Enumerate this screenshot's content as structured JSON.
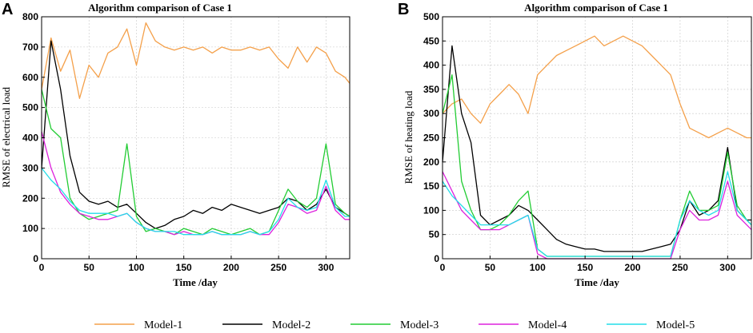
{
  "chart_data": [
    {
      "panel": "A",
      "type": "line",
      "title": "Algorithm comparison of Case 1",
      "xlabel": "Time /day",
      "ylabel": "RMSE of electrical load",
      "xlim": [
        0,
        325
      ],
      "ylim": [
        0,
        800
      ],
      "xticks": [
        0,
        50,
        100,
        150,
        200,
        250,
        300
      ],
      "yticks": [
        0,
        100,
        200,
        300,
        400,
        500,
        600,
        700,
        800
      ],
      "grid": true,
      "series": [
        {
          "name": "Model-1",
          "color": "#f4a04a",
          "x": [
            0,
            10,
            20,
            30,
            40,
            50,
            60,
            70,
            80,
            90,
            100,
            110,
            120,
            130,
            140,
            150,
            160,
            170,
            180,
            190,
            200,
            210,
            220,
            230,
            240,
            250,
            260,
            270,
            280,
            290,
            300,
            310,
            320,
            325
          ],
          "values": [
            560,
            730,
            620,
            690,
            530,
            640,
            600,
            680,
            700,
            760,
            640,
            780,
            720,
            700,
            690,
            700,
            690,
            700,
            680,
            700,
            690,
            690,
            700,
            690,
            700,
            660,
            630,
            700,
            650,
            700,
            680,
            620,
            600,
            580
          ]
        },
        {
          "name": "Model-2",
          "color": "#000000",
          "x": [
            0,
            10,
            20,
            30,
            40,
            50,
            60,
            70,
            80,
            90,
            100,
            110,
            120,
            130,
            140,
            150,
            160,
            170,
            180,
            190,
            200,
            210,
            220,
            230,
            240,
            250,
            260,
            270,
            280,
            290,
            300,
            310,
            320,
            325
          ],
          "values": [
            300,
            720,
            560,
            340,
            220,
            190,
            180,
            190,
            170,
            180,
            150,
            120,
            100,
            110,
            130,
            140,
            160,
            150,
            170,
            160,
            180,
            170,
            160,
            150,
            160,
            170,
            200,
            190,
            160,
            180,
            230,
            170,
            150,
            140
          ]
        },
        {
          "name": "Model-3",
          "color": "#22cc33",
          "x": [
            0,
            10,
            20,
            30,
            40,
            50,
            60,
            70,
            80,
            90,
            100,
            110,
            120,
            130,
            140,
            150,
            160,
            170,
            180,
            190,
            200,
            210,
            220,
            230,
            240,
            250,
            260,
            270,
            280,
            290,
            300,
            310,
            320,
            325
          ],
          "values": [
            560,
            430,
            400,
            200,
            150,
            130,
            140,
            150,
            160,
            380,
            140,
            90,
            100,
            90,
            80,
            100,
            90,
            80,
            100,
            90,
            80,
            90,
            100,
            80,
            90,
            160,
            230,
            190,
            170,
            200,
            380,
            180,
            150,
            140
          ]
        },
        {
          "name": "Model-4",
          "color": "#dd22dd",
          "x": [
            0,
            10,
            20,
            30,
            40,
            50,
            60,
            70,
            80,
            90,
            100,
            110,
            120,
            130,
            140,
            150,
            160,
            170,
            180,
            190,
            200,
            210,
            220,
            230,
            240,
            250,
            260,
            270,
            280,
            290,
            300,
            310,
            320,
            325
          ],
          "values": [
            420,
            300,
            220,
            180,
            150,
            140,
            130,
            130,
            140,
            150,
            120,
            100,
            90,
            90,
            80,
            90,
            80,
            80,
            90,
            80,
            80,
            80,
            90,
            80,
            80,
            120,
            180,
            170,
            150,
            160,
            240,
            160,
            130,
            130
          ]
        },
        {
          "name": "Model-5",
          "color": "#22dde8",
          "x": [
            0,
            10,
            20,
            30,
            40,
            50,
            60,
            70,
            80,
            90,
            100,
            110,
            120,
            130,
            140,
            150,
            160,
            170,
            180,
            190,
            200,
            210,
            220,
            230,
            240,
            250,
            260,
            270,
            280,
            290,
            300,
            310,
            320,
            325
          ],
          "values": [
            300,
            260,
            230,
            190,
            160,
            150,
            150,
            150,
            140,
            150,
            120,
            100,
            90,
            90,
            90,
            80,
            80,
            80,
            90,
            80,
            80,
            80,
            90,
            80,
            90,
            130,
            200,
            170,
            160,
            170,
            260,
            170,
            140,
            140
          ]
        }
      ]
    },
    {
      "panel": "B",
      "type": "line",
      "title": "Algorithm comparison of Case 1",
      "xlabel": "Time /day",
      "ylabel": "RMSE of heating load",
      "xlim": [
        0,
        325
      ],
      "ylim": [
        0,
        500
      ],
      "xticks": [
        0,
        50,
        100,
        150,
        200,
        250,
        300
      ],
      "yticks": [
        0,
        50,
        100,
        150,
        200,
        250,
        300,
        350,
        400,
        450,
        500
      ],
      "grid": true,
      "series": [
        {
          "name": "Model-1",
          "color": "#f4a04a",
          "x": [
            0,
            10,
            20,
            30,
            40,
            50,
            60,
            70,
            80,
            90,
            100,
            110,
            120,
            130,
            140,
            150,
            160,
            170,
            180,
            190,
            200,
            210,
            220,
            230,
            240,
            250,
            260,
            270,
            280,
            290,
            300,
            310,
            320,
            325
          ],
          "values": [
            300,
            320,
            330,
            300,
            280,
            320,
            340,
            360,
            340,
            300,
            380,
            400,
            420,
            430,
            440,
            450,
            460,
            440,
            450,
            460,
            450,
            440,
            420,
            400,
            380,
            320,
            270,
            260,
            250,
            260,
            270,
            260,
            250,
            250
          ]
        },
        {
          "name": "Model-2",
          "color": "#000000",
          "x": [
            0,
            10,
            20,
            30,
            40,
            50,
            60,
            70,
            80,
            90,
            100,
            110,
            120,
            130,
            140,
            150,
            160,
            170,
            180,
            190,
            200,
            210,
            220,
            230,
            240,
            250,
            260,
            270,
            280,
            290,
            300,
            310,
            320,
            325
          ],
          "values": [
            200,
            440,
            300,
            240,
            90,
            70,
            80,
            90,
            110,
            100,
            80,
            60,
            40,
            30,
            25,
            20,
            20,
            15,
            15,
            15,
            15,
            15,
            20,
            25,
            30,
            60,
            120,
            90,
            100,
            120,
            230,
            100,
            80,
            80
          ]
        },
        {
          "name": "Model-3",
          "color": "#22cc33",
          "x": [
            0,
            10,
            20,
            30,
            40,
            50,
            60,
            70,
            80,
            90,
            100,
            110,
            120,
            130,
            140,
            150,
            160,
            170,
            180,
            190,
            200,
            210,
            220,
            230,
            240,
            250,
            260,
            270,
            280,
            290,
            300,
            310,
            320,
            325
          ],
          "values": [
            300,
            380,
            160,
            100,
            60,
            60,
            70,
            90,
            120,
            140,
            20,
            5,
            5,
            5,
            5,
            5,
            5,
            5,
            5,
            5,
            5,
            5,
            5,
            5,
            5,
            80,
            140,
            100,
            100,
            110,
            220,
            110,
            80,
            70
          ]
        },
        {
          "name": "Model-4",
          "color": "#dd22dd",
          "x": [
            0,
            10,
            20,
            30,
            40,
            50,
            60,
            70,
            80,
            90,
            100,
            110,
            120,
            130,
            140,
            150,
            160,
            170,
            180,
            190,
            200,
            210,
            220,
            230,
            240,
            250,
            260,
            270,
            280,
            290,
            300,
            310,
            320,
            325
          ],
          "values": [
            180,
            140,
            100,
            80,
            60,
            60,
            60,
            70,
            80,
            90,
            10,
            0,
            0,
            0,
            0,
            0,
            0,
            0,
            0,
            0,
            0,
            0,
            0,
            0,
            0,
            60,
            100,
            80,
            80,
            90,
            160,
            90,
            70,
            60
          ]
        },
        {
          "name": "Model-5",
          "color": "#22dde8",
          "x": [
            0,
            10,
            20,
            30,
            40,
            50,
            60,
            70,
            80,
            90,
            100,
            110,
            120,
            130,
            140,
            150,
            160,
            170,
            180,
            190,
            200,
            210,
            220,
            230,
            240,
            250,
            260,
            270,
            280,
            290,
            300,
            310,
            320,
            325
          ],
          "values": [
            160,
            130,
            110,
            90,
            70,
            70,
            70,
            70,
            80,
            90,
            20,
            5,
            5,
            5,
            5,
            5,
            5,
            5,
            5,
            5,
            5,
            5,
            5,
            5,
            5,
            80,
            120,
            100,
            90,
            100,
            180,
            100,
            80,
            70
          ]
        }
      ]
    }
  ],
  "legend": [
    "Model-1",
    "Model-2",
    "Model-3",
    "Model-4",
    "Model-5"
  ]
}
